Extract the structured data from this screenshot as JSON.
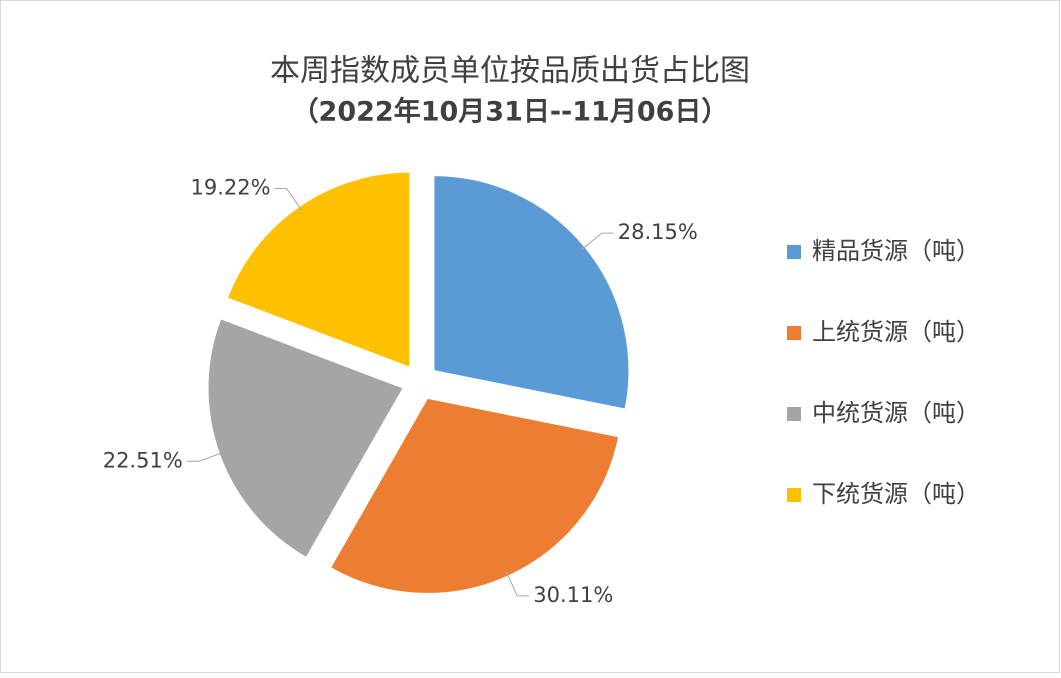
{
  "chart_data": {
    "type": "pie",
    "title": "本周指数成员单位按品质出货占比图",
    "subtitle": "（2022年10月31日--11月06日）",
    "categories": [
      "精品货源（吨）",
      "上统货源（吨）",
      "中统货源（吨）",
      "下统货源（吨）"
    ],
    "values": [
      28.15,
      30.11,
      22.51,
      19.22
    ],
    "value_labels": [
      "28.15%",
      "30.11%",
      "22.51%",
      "19.22%"
    ],
    "colors": [
      "#5b9bd5",
      "#ed7d31",
      "#a5a5a5",
      "#ffc000"
    ],
    "legend": "right"
  }
}
